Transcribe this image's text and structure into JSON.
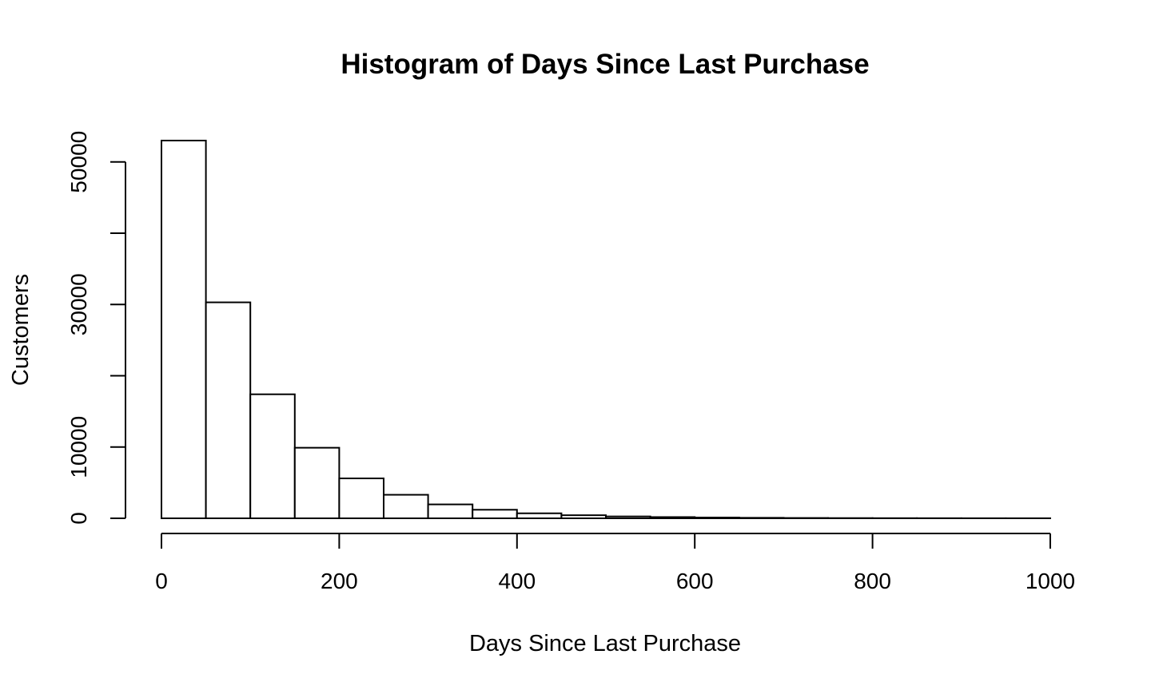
{
  "chart_data": {
    "type": "bar",
    "title": "Histogram of Days Since Last Purchase",
    "xlabel": "Days Since Last Purchase",
    "ylabel": "Customers",
    "bins": {
      "x": [
        25,
        75,
        125,
        175,
        225,
        275,
        325,
        375,
        425,
        475,
        525,
        575,
        625,
        675,
        725,
        775,
        825,
        875,
        925,
        975
      ],
      "values": [
        53000,
        30300,
        17400,
        9900,
        5600,
        3300,
        1950,
        1200,
        700,
        430,
        260,
        170,
        110,
        70,
        45,
        30,
        20,
        15,
        10,
        8
      ]
    },
    "bin_width": 50,
    "xlim": [
      0,
      1000
    ],
    "ylim": [
      0,
      53000
    ],
    "xticks": [
      "0",
      "200",
      "400",
      "600",
      "800",
      "1000"
    ],
    "yticks": [
      "0",
      "10000",
      "30000",
      "50000"
    ],
    "yticks_minor": [
      20000,
      40000
    ],
    "grid": false,
    "bar_fill": "#ffffff",
    "bar_stroke": "#000000"
  }
}
